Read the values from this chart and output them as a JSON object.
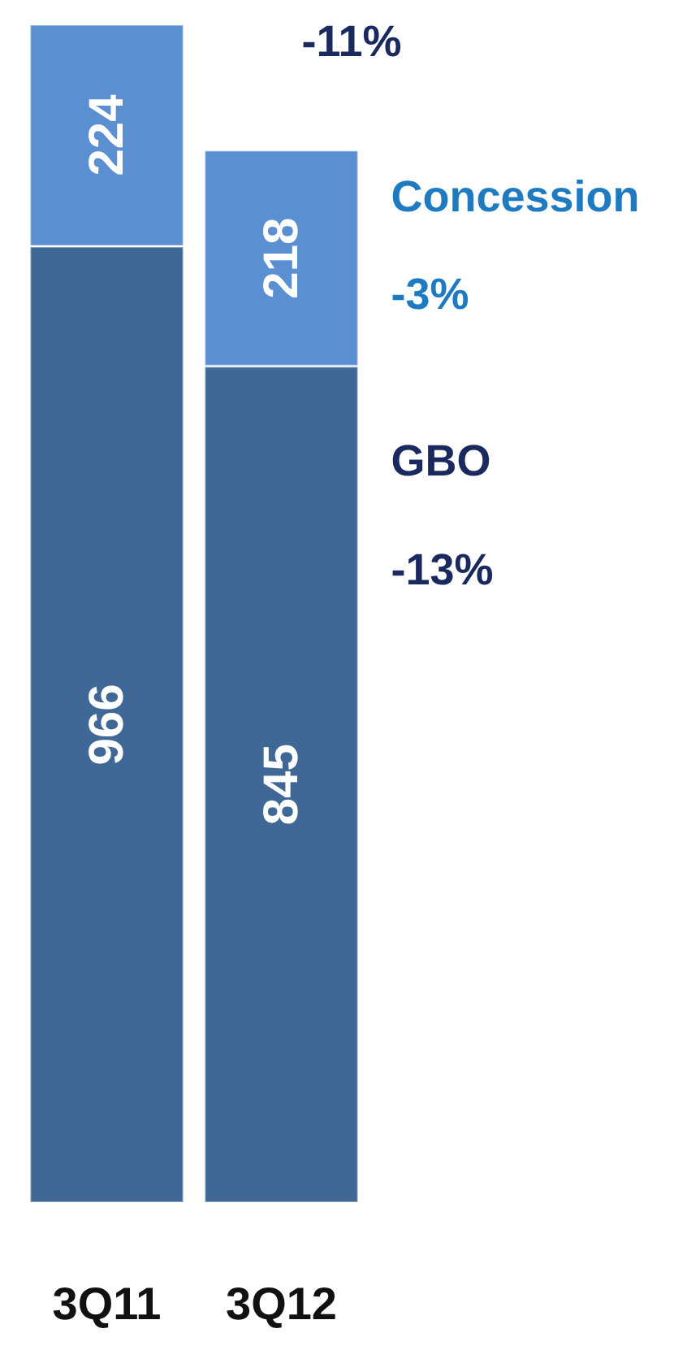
{
  "chart_data": {
    "type": "bar",
    "stacked": true,
    "data_labels": true,
    "categories": [
      "3Q11",
      "3Q12"
    ],
    "series": [
      {
        "name": "GBO",
        "color": "#3f6897",
        "values": [
          966,
          845
        ]
      },
      {
        "name": "Concession",
        "color": "#5a8fd2",
        "values": [
          224,
          218
        ]
      }
    ],
    "annotations": [
      "-11%",
      "-3%",
      "-13%"
    ],
    "legend": false
  }
}
